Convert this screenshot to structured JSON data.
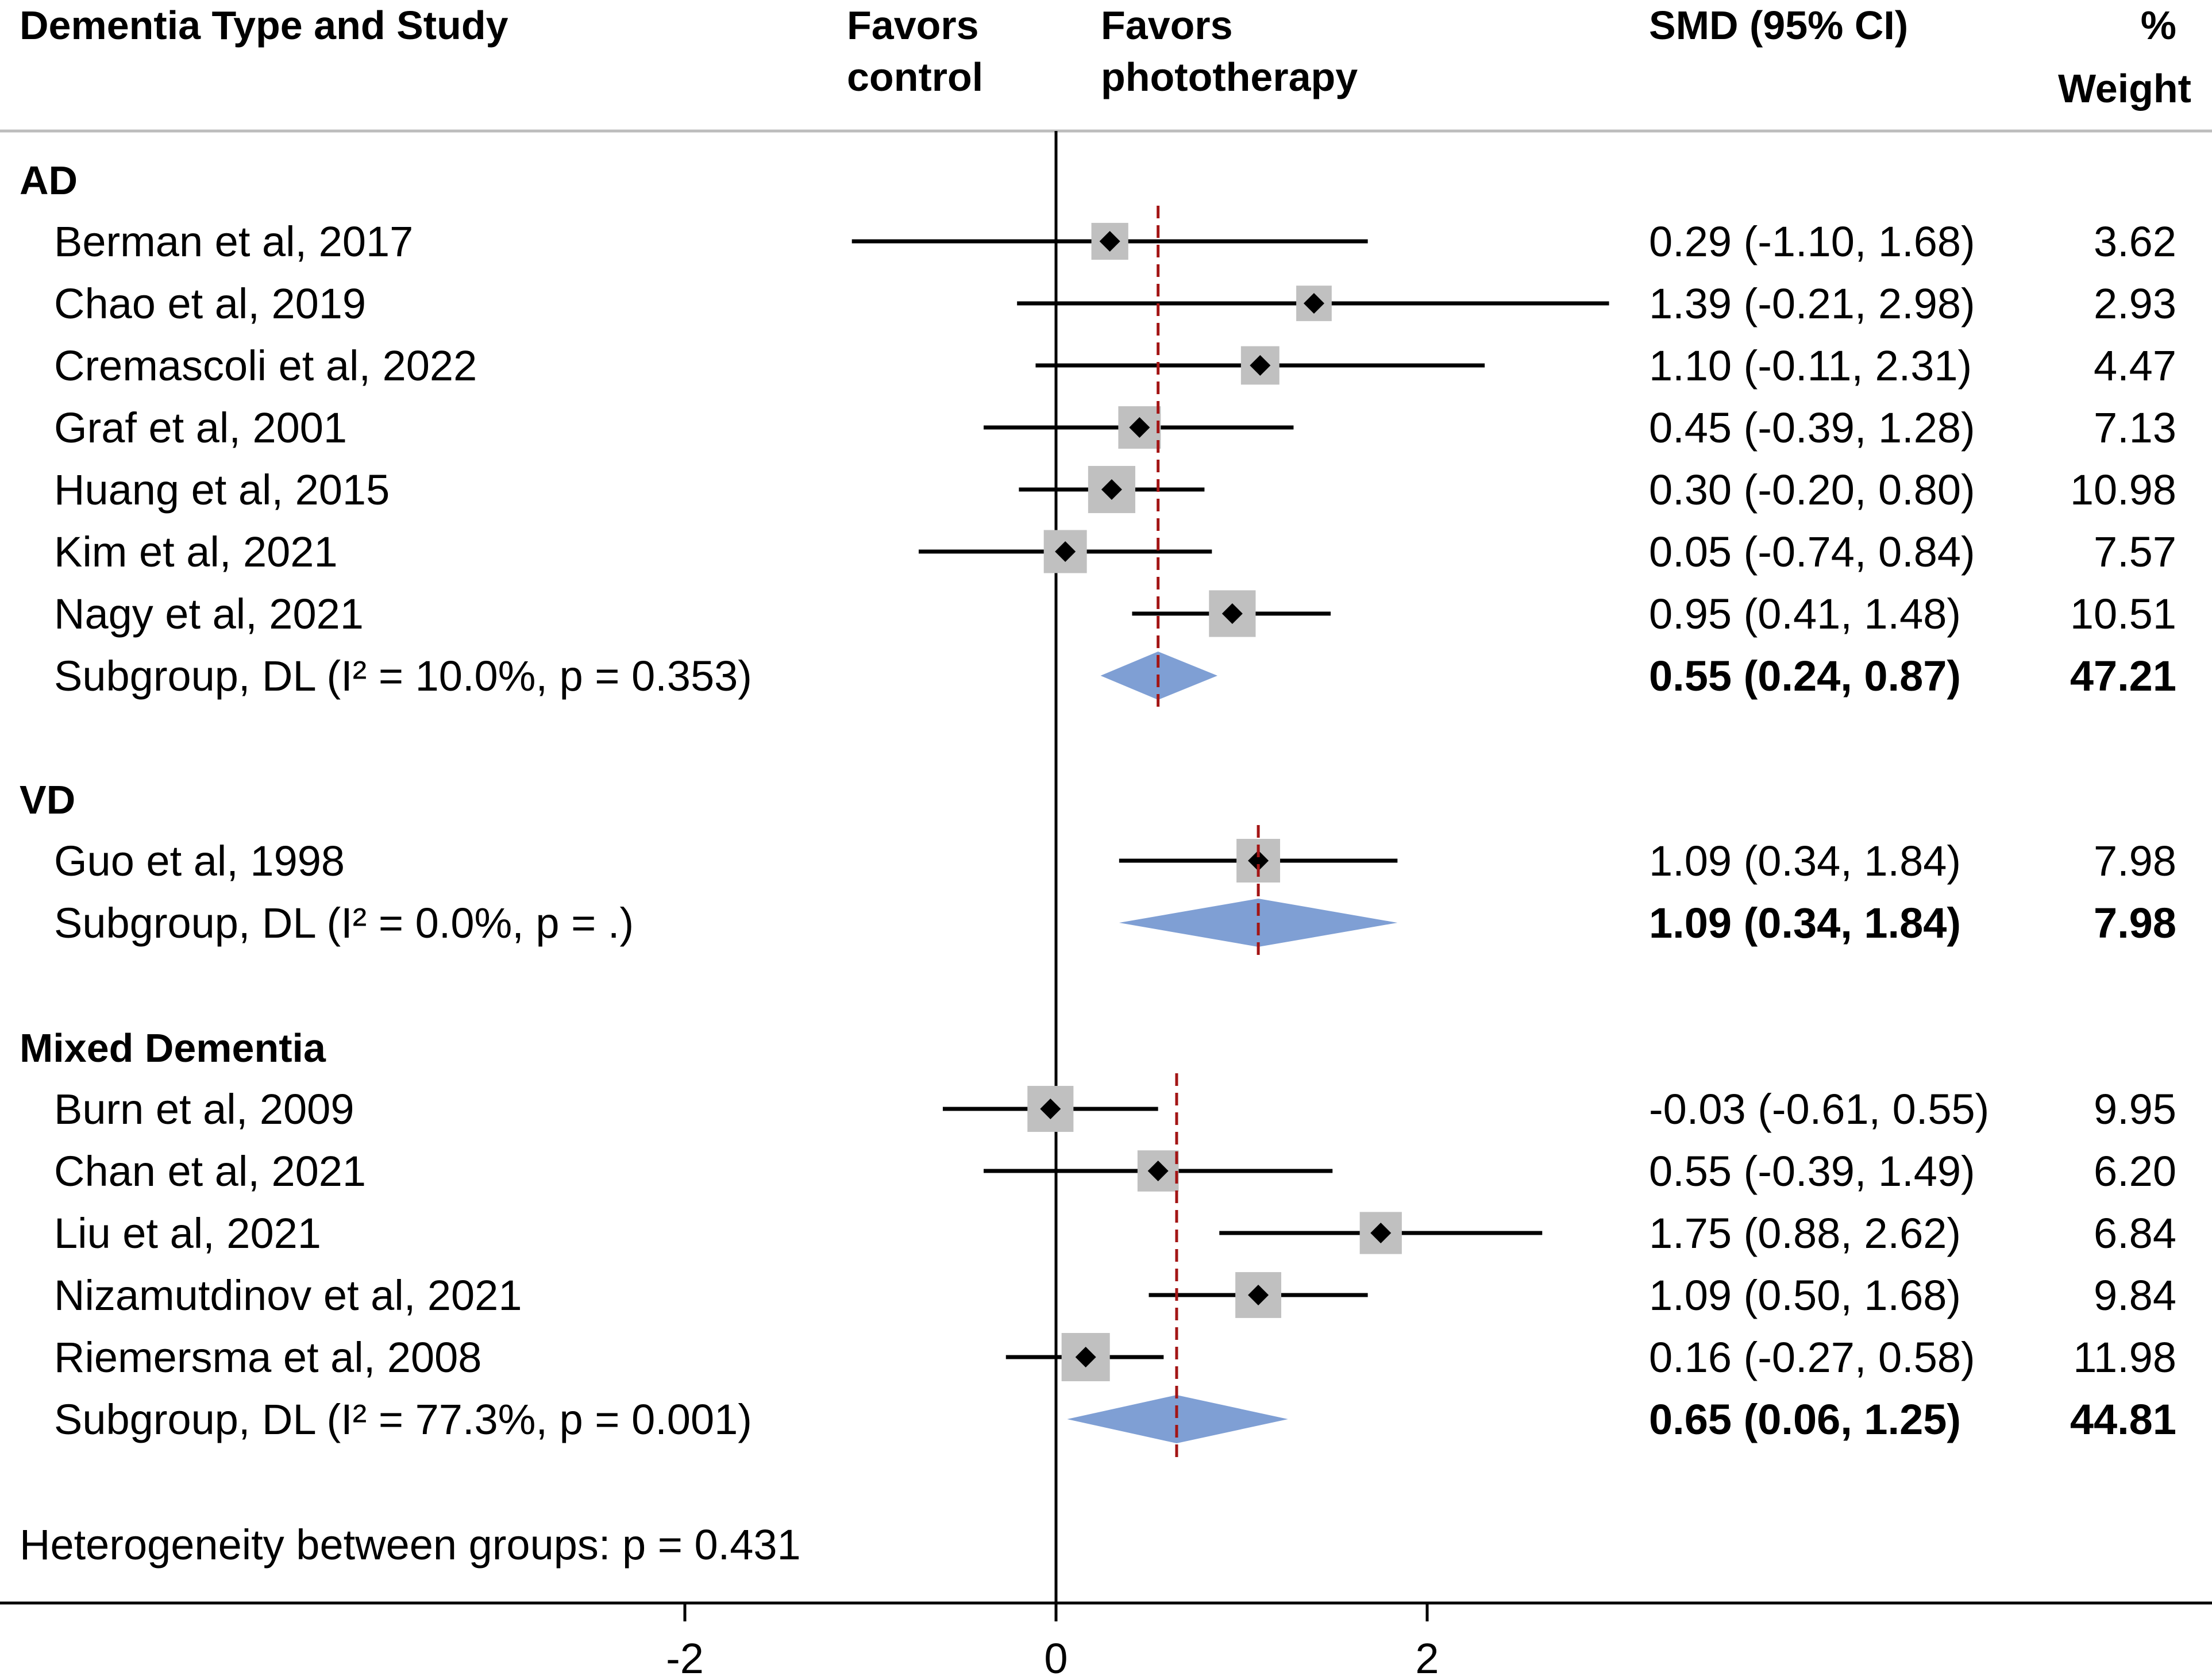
{
  "chart_data": {
    "type": "forest",
    "headers": {
      "study": "Dementia Type and Study",
      "favors_control": [
        "Favors",
        "control"
      ],
      "favors_treatment": [
        "Favors",
        "phototherapy"
      ],
      "effect": "SMD (95% CI)",
      "weight": [
        "%",
        "Weight"
      ]
    },
    "groups": [
      {
        "name": "AD",
        "studies": [
          {
            "label": "Berman et al, 2017",
            "smd": 0.29,
            "lo": -1.1,
            "hi": 1.68,
            "ci_text": "0.29 (-1.10, 1.68)",
            "weight": "3.62"
          },
          {
            "label": "Chao et al, 2019",
            "smd": 1.39,
            "lo": -0.21,
            "hi": 2.98,
            "ci_text": "1.39 (-0.21, 2.98)",
            "weight": "2.93"
          },
          {
            "label": "Cremascoli et al, 2022",
            "smd": 1.1,
            "lo": -0.11,
            "hi": 2.31,
            "ci_text": "1.10 (-0.11, 2.31)",
            "weight": "4.47"
          },
          {
            "label": "Graf et al, 2001",
            "smd": 0.45,
            "lo": -0.39,
            "hi": 1.28,
            "ci_text": "0.45 (-0.39, 1.28)",
            "weight": "7.13"
          },
          {
            "label": "Huang et al, 2015",
            "smd": 0.3,
            "lo": -0.2,
            "hi": 0.8,
            "ci_text": "0.30 (-0.20, 0.80)",
            "weight": "10.98"
          },
          {
            "label": "Kim et al, 2021",
            "smd": 0.05,
            "lo": -0.74,
            "hi": 0.84,
            "ci_text": "0.05 (-0.74, 0.84)",
            "weight": "7.57"
          },
          {
            "label": "Nagy et al, 2021",
            "smd": 0.95,
            "lo": 0.41,
            "hi": 1.48,
            "ci_text": "0.95 (0.41, 1.48)",
            "weight": "10.51"
          }
        ],
        "subgroup": {
          "label": "Subgroup, DL (I² = 10.0%, p = 0.353)",
          "smd": 0.55,
          "lo": 0.24,
          "hi": 0.87,
          "ci_text": "0.55 (0.24, 0.87)",
          "weight": "47.21"
        }
      },
      {
        "name": "VD",
        "studies": [
          {
            "label": "Guo et al, 1998",
            "smd": 1.09,
            "lo": 0.34,
            "hi": 1.84,
            "ci_text": "1.09 (0.34, 1.84)",
            "weight": "7.98"
          }
        ],
        "subgroup": {
          "label": "Subgroup, DL (I² = 0.0%, p = .)",
          "smd": 1.09,
          "lo": 0.34,
          "hi": 1.84,
          "ci_text": "1.09 (0.34, 1.84)",
          "weight": "7.98"
        }
      },
      {
        "name": "Mixed Dementia",
        "studies": [
          {
            "label": "Burn et al, 2009",
            "smd": -0.03,
            "lo": -0.61,
            "hi": 0.55,
            "ci_text": "-0.03 (-0.61, 0.55)",
            "weight": "9.95"
          },
          {
            "label": "Chan et al, 2021",
            "smd": 0.55,
            "lo": -0.39,
            "hi": 1.49,
            "ci_text": "0.55 (-0.39, 1.49)",
            "weight": "6.20"
          },
          {
            "label": "Liu et al, 2021",
            "smd": 1.75,
            "lo": 0.88,
            "hi": 2.62,
            "ci_text": "1.75 (0.88, 2.62)",
            "weight": "6.84"
          },
          {
            "label": "Nizamutdinov et al, 2021",
            "smd": 1.09,
            "lo": 0.5,
            "hi": 1.68,
            "ci_text": "1.09 (0.50, 1.68)",
            "weight": "9.84"
          },
          {
            "label": "Riemersma et al, 2008",
            "smd": 0.16,
            "lo": -0.27,
            "hi": 0.58,
            "ci_text": "0.16 (-0.27, 0.58)",
            "weight": "11.98"
          }
        ],
        "subgroup": {
          "label": "Subgroup, DL (I² = 77.3%, p = 0.001)",
          "smd": 0.65,
          "lo": 0.06,
          "hi": 1.25,
          "ci_text": "0.65 (0.06, 1.25)",
          "weight": "44.81"
        }
      }
    ],
    "heterogeneity_note": "Heterogeneity between groups: p = 0.431",
    "x_ticks": [
      -2,
      0,
      2
    ],
    "x_tick_labels": [
      "-2",
      "0",
      "2"
    ],
    "null_line": 0,
    "colors": {
      "ci_line": "#000000",
      "study_box": "#c0c0c0",
      "study_marker": "#000000",
      "diamond": "#7f9fd4",
      "subgroup_line": "#a31515",
      "rule": "#bdbdbd"
    }
  }
}
